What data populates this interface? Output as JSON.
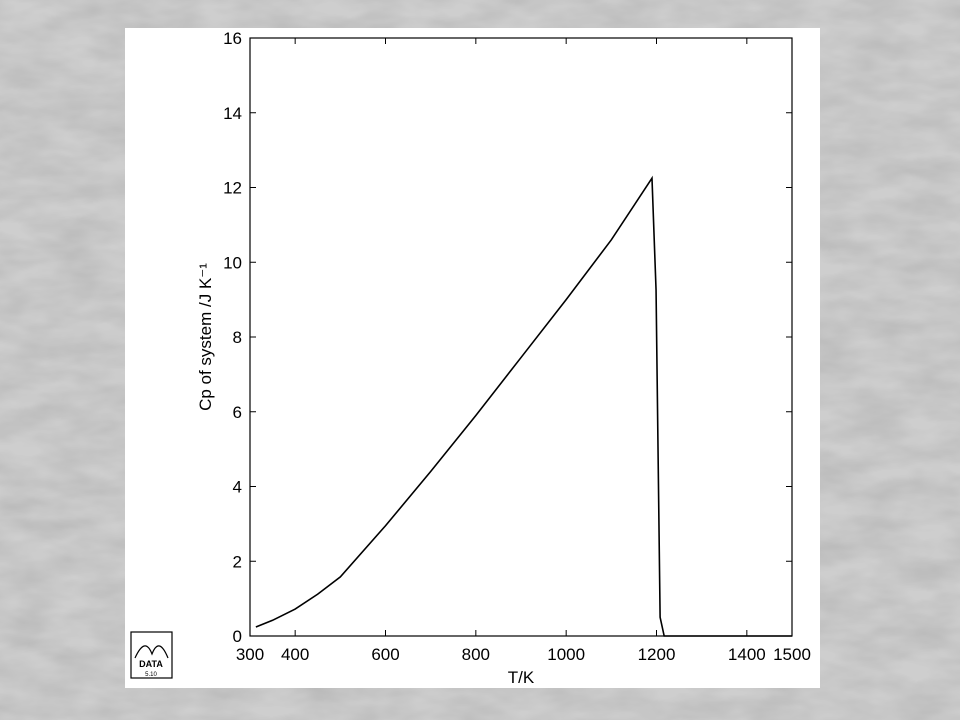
{
  "chart_data": {
    "type": "line",
    "xlabel": "T/K",
    "ylabel": "Cp of system /J K⁻¹",
    "x": [
      313,
      350,
      400,
      450,
      500,
      600,
      700,
      800,
      900,
      1000,
      1100,
      1190,
      1199,
      1208,
      1217,
      1300,
      1400,
      1500
    ],
    "series": [
      {
        "name": "Cp",
        "color": "#000000",
        "values": [
          0.24,
          0.42,
          0.72,
          1.12,
          1.58,
          2.95,
          4.4,
          5.9,
          7.45,
          9.0,
          10.6,
          12.25,
          9.26,
          0.5,
          0,
          0,
          0,
          0
        ]
      }
    ],
    "xlim": [
      300,
      1500
    ],
    "ylim": [
      0,
      16
    ],
    "xticks": [
      300,
      400,
      600,
      800,
      1000,
      1200,
      1400,
      1500
    ],
    "yticks": [
      0,
      2,
      4,
      6,
      8,
      10,
      12,
      14,
      16
    ],
    "logo": {
      "text": "DATA",
      "version": "5.10"
    }
  }
}
